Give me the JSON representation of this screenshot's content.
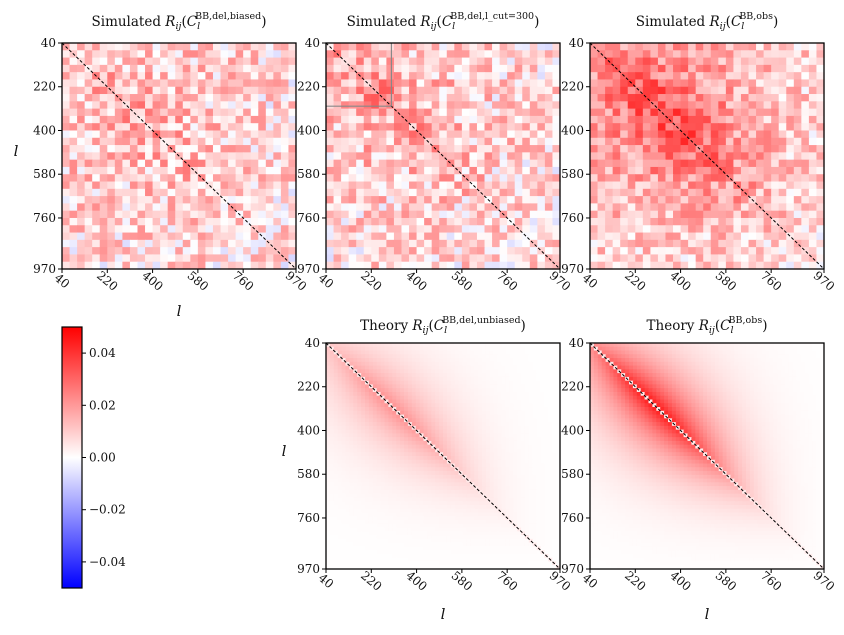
{
  "chart_data": {
    "type": "heatmap",
    "colormap": {
      "name": "bwr",
      "colors": {
        "negative": "#0000ff",
        "zero": "#ffffff",
        "positive": "#ff0000"
      },
      "vmin": -0.05,
      "vmax": 0.05,
      "ticks": [
        "0.04",
        "0.02",
        "0.00",
        "−0.02",
        "−0.04"
      ],
      "tick_values": [
        0.04,
        0.02,
        0.0,
        -0.02,
        -0.04
      ]
    },
    "l_range": [
      40,
      970
    ],
    "tick_labels": [
      "40",
      "220",
      "400",
      "580",
      "760",
      "970"
    ],
    "tick_values": [
      40,
      220,
      400,
      580,
      760,
      970
    ],
    "axis_label": "l",
    "panels": [
      {
        "id": "sim-del-biased",
        "title_prefix": "Simulated ",
        "title_math": "R_{ij}(C_l^{BB,del,biased})",
        "kind": "simulated",
        "amplitude": 0.012,
        "noise": 0.014,
        "diagonal_line": true,
        "cut_l": null,
        "show_ylabel": true,
        "show_xlabel": true
      },
      {
        "id": "sim-del-lcut300",
        "title_prefix": "Simulated ",
        "title_math": "R_{ij}(C_l^{BB,del,l_cut=300})",
        "kind": "simulated",
        "amplitude": 0.012,
        "noise": 0.014,
        "diagonal_line": true,
        "cut_l": 300,
        "show_ylabel": false,
        "show_xlabel": false
      },
      {
        "id": "sim-obs",
        "title_prefix": "Simulated ",
        "title_math": "R_{ij}(C_l^{BB,obs})",
        "kind": "simulated",
        "amplitude": 0.03,
        "noise": 0.012,
        "diagonal_line": true,
        "cut_l": null,
        "show_ylabel": false,
        "show_xlabel": false
      },
      {
        "id": "theory-del-unbiased",
        "title_prefix": "Theory ",
        "title_math": "R_{ij}(C_l^{BB,del,unbiased})",
        "kind": "theory",
        "amplitude": 0.022,
        "noise": 0,
        "diagonal_line": true,
        "cut_l": null,
        "show_ylabel": true,
        "show_xlabel": true
      },
      {
        "id": "theory-obs",
        "title_prefix": "Theory ",
        "title_math": "R_{ij}(C_l^{BB,obs})",
        "kind": "theory",
        "amplitude": 0.046,
        "noise": 0,
        "diagonal_line": true,
        "cut_l": null,
        "show_ylabel": false,
        "show_xlabel": true
      }
    ]
  }
}
